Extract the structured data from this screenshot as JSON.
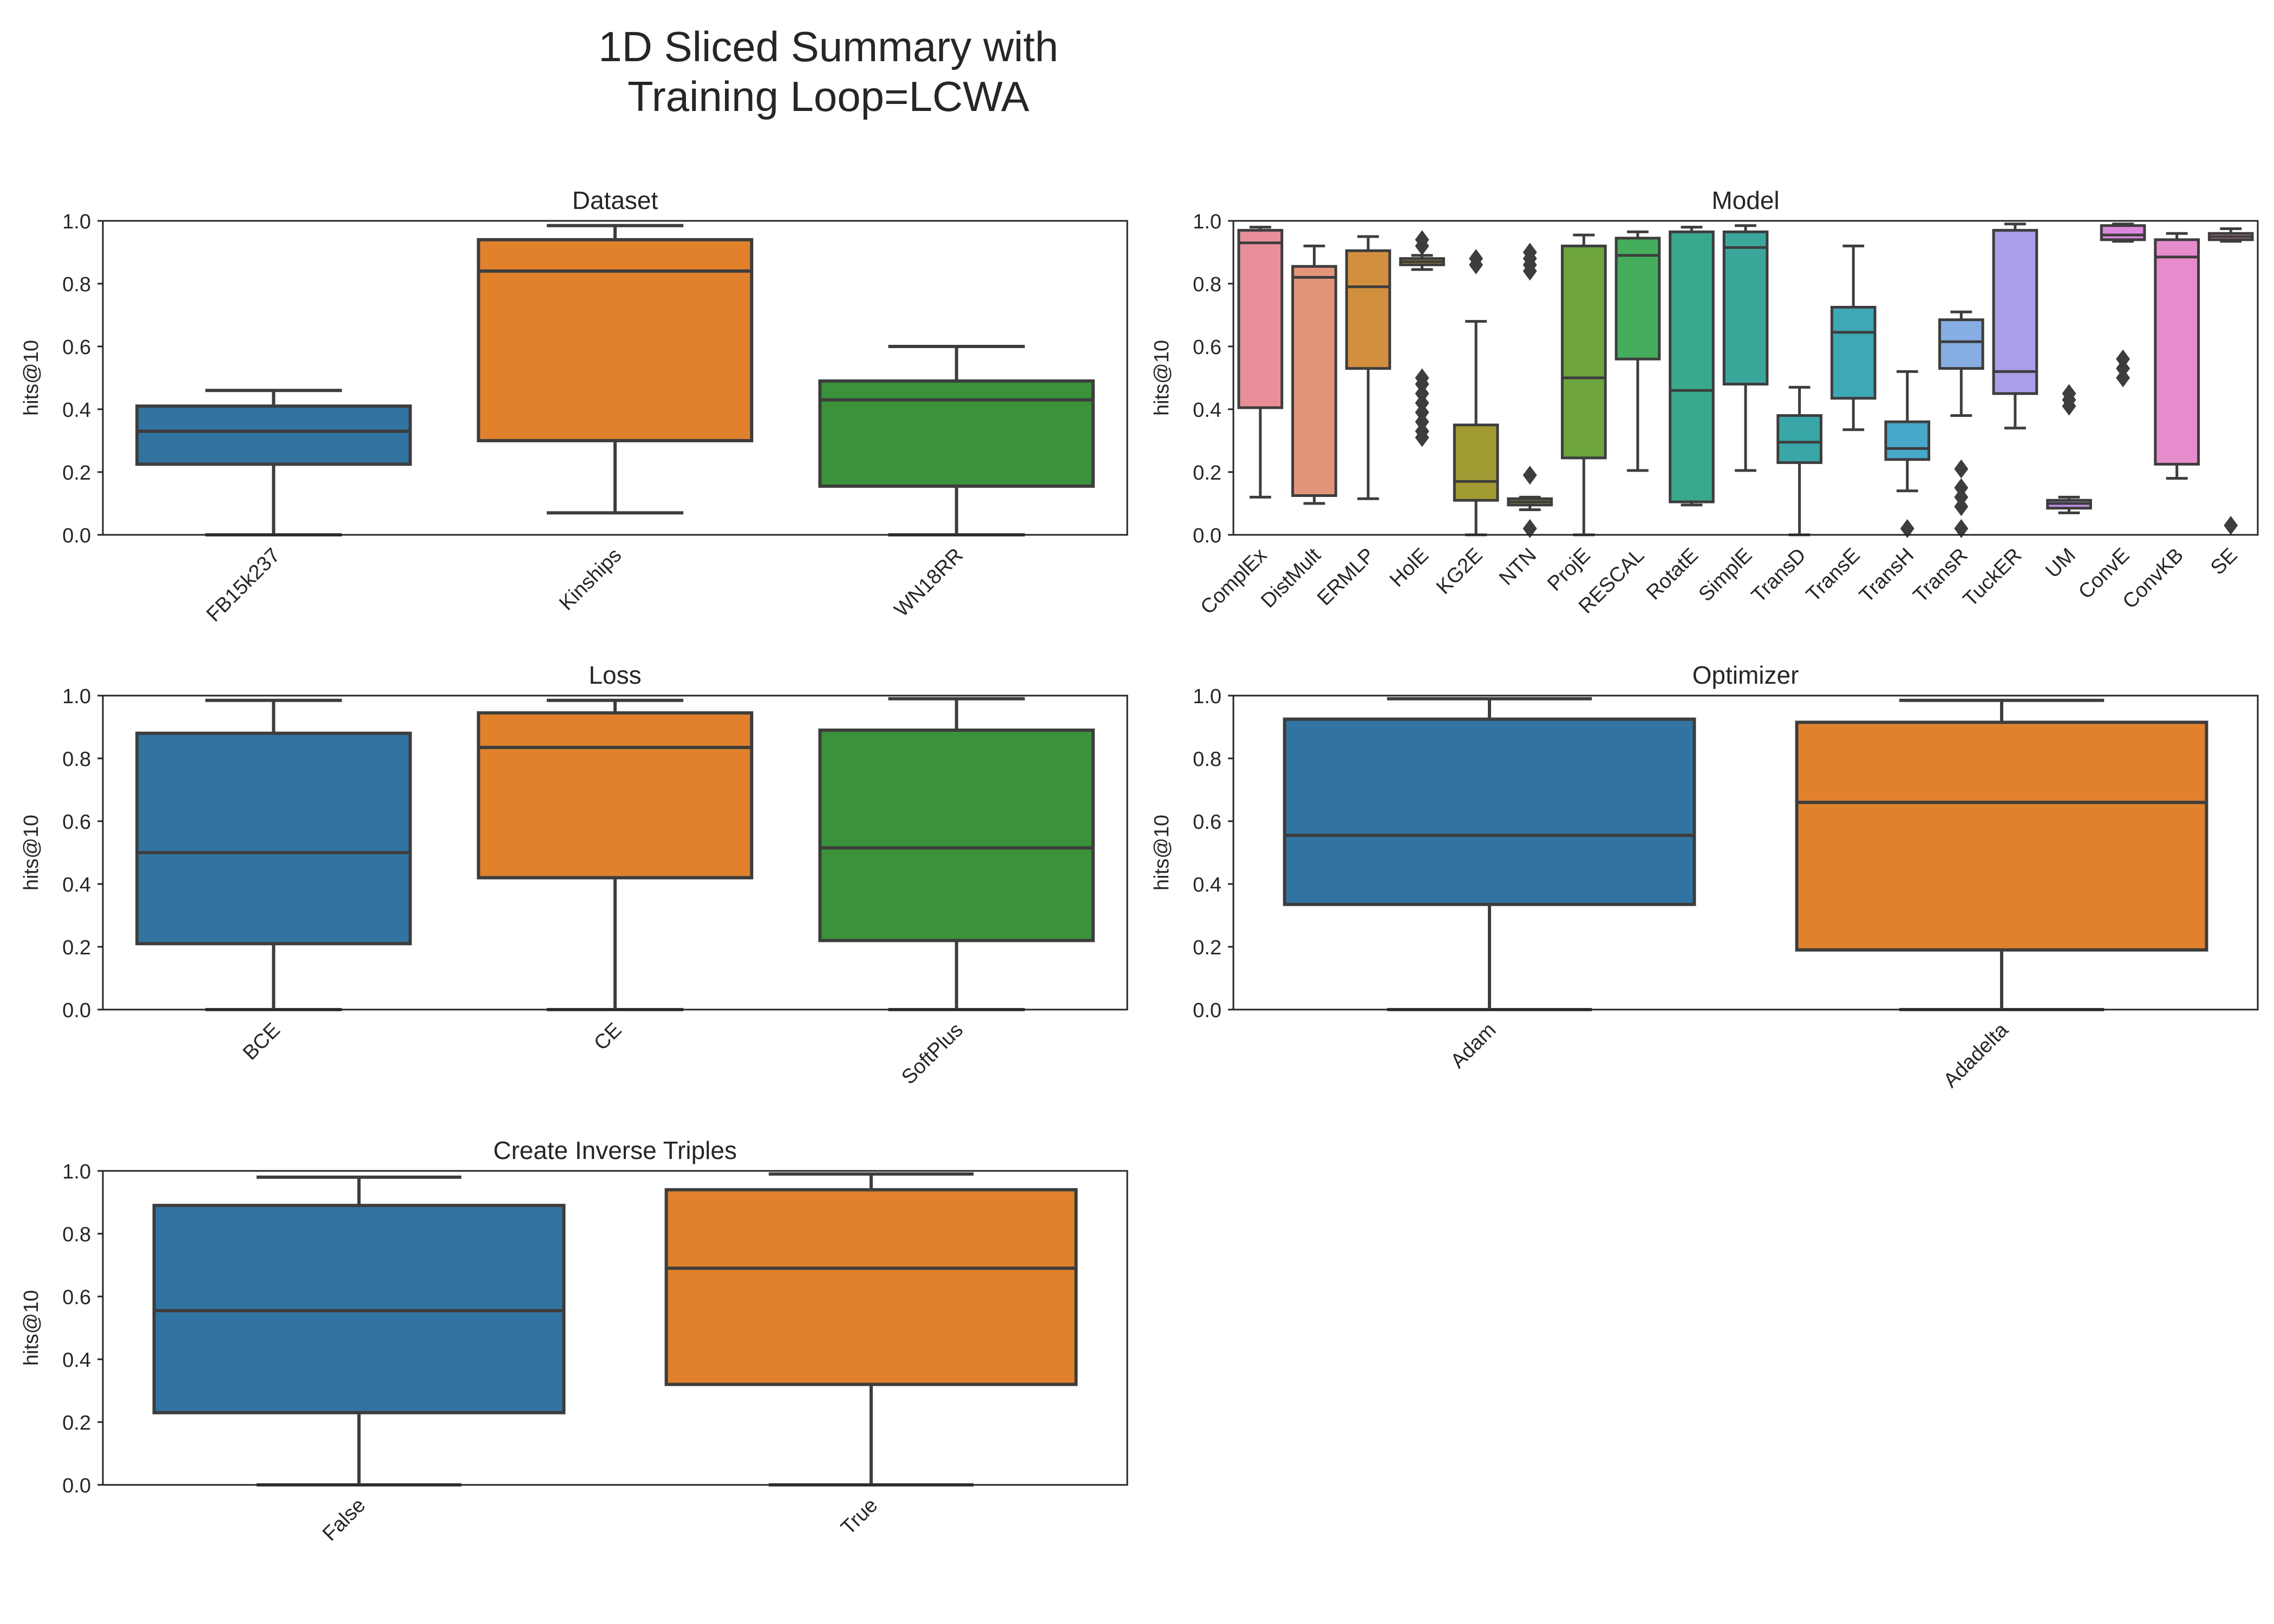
{
  "title_lines": [
    "1D Sliced Summary with",
    "Training Loop=LCWA"
  ],
  "palette": [
    "#3274a1",
    "#e1812c",
    "#3a923a"
  ],
  "chart_data": [
    {
      "type": "box",
      "title": "Dataset",
      "xlabel": "",
      "ylabel": "hits@10",
      "ylim": [
        0,
        1
      ],
      "yticks": [
        "0.0",
        "0.2",
        "0.4",
        "0.6",
        "0.8",
        "1.0"
      ],
      "grid": false,
      "categories": [
        "FB15k237",
        "Kinships",
        "WN18RR"
      ],
      "colors": [
        "#3274a1",
        "#e1812c",
        "#3a923a"
      ],
      "boxes": [
        {
          "whislo": 0.0,
          "q1": 0.225,
          "med": 0.33,
          "q3": 0.41,
          "whishi": 0.46,
          "fliers": []
        },
        {
          "whislo": 0.07,
          "q1": 0.3,
          "med": 0.84,
          "q3": 0.94,
          "whishi": 0.985,
          "fliers": []
        },
        {
          "whislo": 0.0,
          "q1": 0.155,
          "med": 0.43,
          "q3": 0.49,
          "whishi": 0.6,
          "fliers": []
        }
      ]
    },
    {
      "type": "box",
      "title": "Model",
      "xlabel": "",
      "ylabel": "hits@10",
      "ylim": [
        0,
        1
      ],
      "yticks": [
        "0.0",
        "0.2",
        "0.4",
        "0.6",
        "0.8",
        "1.0"
      ],
      "grid": false,
      "categories": [
        "ComplEx",
        "DistMult",
        "ERMLP",
        "HolE",
        "KG2E",
        "NTN",
        "ProjE",
        "RESCAL",
        "RotatE",
        "SimplE",
        "TransD",
        "TransE",
        "TransH",
        "TransR",
        "TuckER",
        "UM",
        "ConvE",
        "ConvKB",
        "SE"
      ],
      "colors": [
        "#e88f9a",
        "#e3957c",
        "#d2903f",
        "#b8982d",
        "#a29a33",
        "#8a9c3c",
        "#6ea53f",
        "#45ae5d",
        "#3aa98b",
        "#3aa79a",
        "#39a7a7",
        "#3ea8b5",
        "#47a8ca",
        "#86aee3",
        "#a99ee8",
        "#c48fe6",
        "#da89dc",
        "#e68ccc",
        "#e990b2"
      ],
      "boxes": [
        {
          "whislo": 0.12,
          "q1": 0.405,
          "med": 0.93,
          "q3": 0.97,
          "whishi": 0.98,
          "fliers": []
        },
        {
          "whislo": 0.1,
          "q1": 0.125,
          "med": 0.82,
          "q3": 0.855,
          "whishi": 0.92,
          "fliers": []
        },
        {
          "whislo": 0.115,
          "q1": 0.53,
          "med": 0.79,
          "q3": 0.905,
          "whishi": 0.95,
          "fliers": []
        },
        {
          "whislo": 0.845,
          "q1": 0.86,
          "med": 0.87,
          "q3": 0.88,
          "whishi": 0.89,
          "fliers": [
            0.31,
            0.33,
            0.36,
            0.39,
            0.42,
            0.45,
            0.48,
            0.5,
            0.92,
            0.94
          ]
        },
        {
          "whislo": 0.0,
          "q1": 0.11,
          "med": 0.17,
          "q3": 0.35,
          "whishi": 0.68,
          "fliers": [
            0.86,
            0.88
          ]
        },
        {
          "whislo": 0.08,
          "q1": 0.095,
          "med": 0.105,
          "q3": 0.115,
          "whishi": 0.12,
          "fliers": [
            0.02,
            0.19,
            0.84,
            0.86,
            0.88,
            0.9
          ]
        },
        {
          "whislo": 0.0,
          "q1": 0.245,
          "med": 0.5,
          "q3": 0.92,
          "whishi": 0.955,
          "fliers": []
        },
        {
          "whislo": 0.205,
          "q1": 0.56,
          "med": 0.89,
          "q3": 0.945,
          "whishi": 0.965,
          "fliers": []
        },
        {
          "whislo": 0.095,
          "q1": 0.105,
          "med": 0.46,
          "q3": 0.965,
          "whishi": 0.98,
          "fliers": []
        },
        {
          "whislo": 0.205,
          "q1": 0.48,
          "med": 0.915,
          "q3": 0.965,
          "whishi": 0.985,
          "fliers": []
        },
        {
          "whislo": 0.0,
          "q1": 0.23,
          "med": 0.295,
          "q3": 0.38,
          "whishi": 0.47,
          "fliers": []
        },
        {
          "whislo": 0.335,
          "q1": 0.435,
          "med": 0.645,
          "q3": 0.725,
          "whishi": 0.92,
          "fliers": []
        },
        {
          "whislo": 0.14,
          "q1": 0.24,
          "med": 0.275,
          "q3": 0.36,
          "whishi": 0.52,
          "fliers": [
            0.02
          ]
        },
        {
          "whislo": 0.38,
          "q1": 0.53,
          "med": 0.615,
          "q3": 0.685,
          "whishi": 0.71,
          "fliers": [
            0.02,
            0.09,
            0.12,
            0.15,
            0.21
          ]
        },
        {
          "whislo": 0.34,
          "q1": 0.45,
          "med": 0.52,
          "q3": 0.97,
          "whishi": 0.99,
          "fliers": []
        },
        {
          "whislo": 0.07,
          "q1": 0.085,
          "med": 0.1,
          "q3": 0.11,
          "whishi": 0.12,
          "fliers": [
            0.41,
            0.43,
            0.45
          ]
        },
        {
          "whislo": 0.935,
          "q1": 0.94,
          "med": 0.955,
          "q3": 0.985,
          "whishi": 0.99,
          "fliers": [
            0.5,
            0.53,
            0.56
          ]
        },
        {
          "whislo": 0.18,
          "q1": 0.225,
          "med": 0.885,
          "q3": 0.94,
          "whishi": 0.96,
          "fliers": []
        },
        {
          "whislo": 0.935,
          "q1": 0.94,
          "med": 0.95,
          "q3": 0.96,
          "whishi": 0.975,
          "fliers": [
            0.03
          ]
        }
      ]
    },
    {
      "type": "box",
      "title": "Loss",
      "xlabel": "",
      "ylabel": "hits@10",
      "ylim": [
        0,
        1
      ],
      "yticks": [
        "0.0",
        "0.2",
        "0.4",
        "0.6",
        "0.8",
        "1.0"
      ],
      "grid": false,
      "categories": [
        "BCE",
        "CE",
        "SoftPlus"
      ],
      "colors": [
        "#3274a1",
        "#e1812c",
        "#3a923a"
      ],
      "boxes": [
        {
          "whislo": 0.0,
          "q1": 0.21,
          "med": 0.5,
          "q3": 0.88,
          "whishi": 0.985,
          "fliers": []
        },
        {
          "whislo": 0.0,
          "q1": 0.42,
          "med": 0.835,
          "q3": 0.945,
          "whishi": 0.985,
          "fliers": []
        },
        {
          "whislo": 0.0,
          "q1": 0.22,
          "med": 0.515,
          "q3": 0.89,
          "whishi": 0.99,
          "fliers": []
        }
      ]
    },
    {
      "type": "box",
      "title": "Optimizer",
      "xlabel": "",
      "ylabel": "hits@10",
      "ylim": [
        0,
        1
      ],
      "yticks": [
        "0.0",
        "0.2",
        "0.4",
        "0.6",
        "0.8",
        "1.0"
      ],
      "grid": false,
      "categories": [
        "Adam",
        "Adadelta"
      ],
      "colors": [
        "#3274a1",
        "#e1812c"
      ],
      "boxes": [
        {
          "whislo": 0.0,
          "q1": 0.335,
          "med": 0.555,
          "q3": 0.925,
          "whishi": 0.99,
          "fliers": []
        },
        {
          "whislo": 0.0,
          "q1": 0.19,
          "med": 0.66,
          "q3": 0.915,
          "whishi": 0.985,
          "fliers": []
        }
      ]
    },
    {
      "type": "box",
      "title": "Create Inverse Triples",
      "xlabel": "",
      "ylabel": "hits@10",
      "ylim": [
        0,
        1
      ],
      "yticks": [
        "0.0",
        "0.2",
        "0.4",
        "0.6",
        "0.8",
        "1.0"
      ],
      "grid": false,
      "categories": [
        "False",
        "True"
      ],
      "colors": [
        "#3274a1",
        "#e1812c"
      ],
      "boxes": [
        {
          "whislo": 0.0,
          "q1": 0.23,
          "med": 0.555,
          "q3": 0.89,
          "whishi": 0.98,
          "fliers": []
        },
        {
          "whislo": 0.0,
          "q1": 0.32,
          "med": 0.69,
          "q3": 0.94,
          "whishi": 0.99,
          "fliers": []
        }
      ]
    }
  ]
}
